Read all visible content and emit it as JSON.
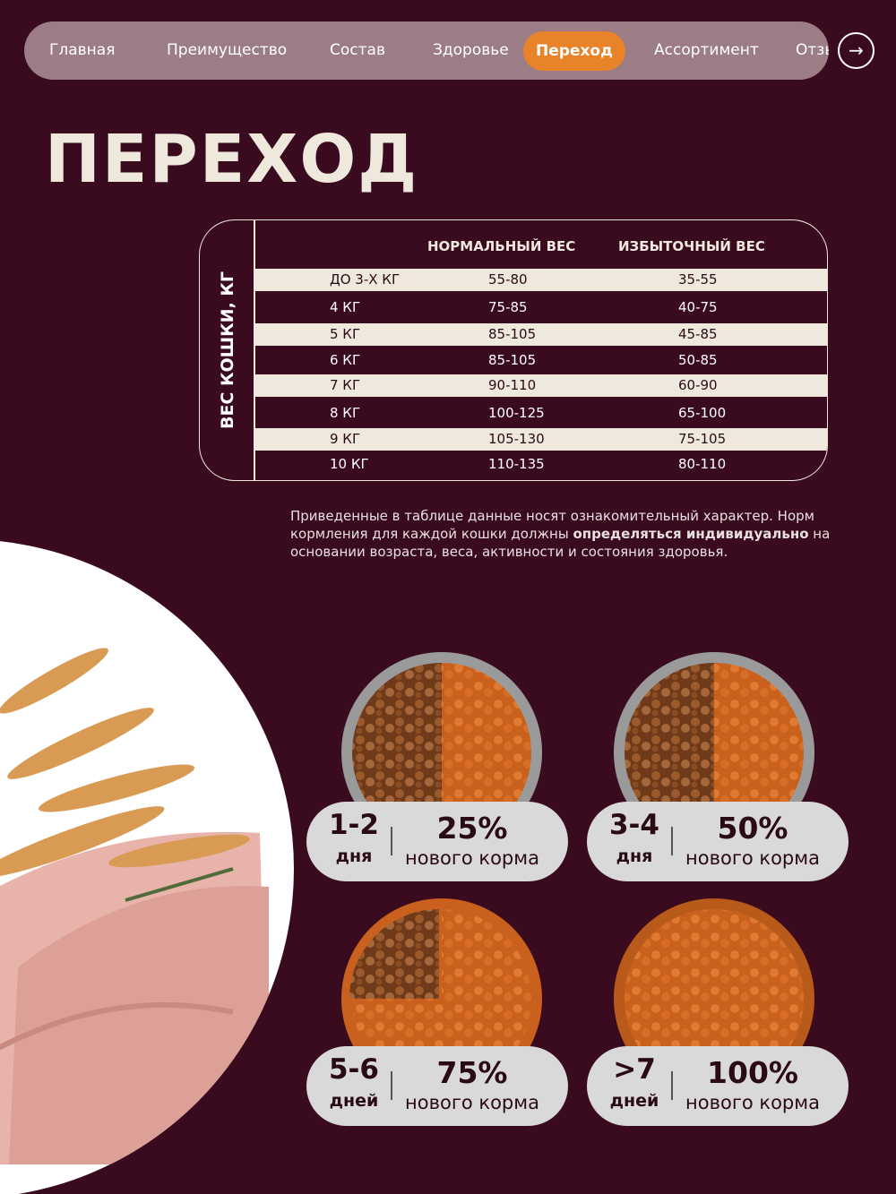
{
  "nav": {
    "items": [
      "Главная",
      "Преимущество",
      "Состав",
      "Здоровье",
      "Переход",
      "Ассортимент",
      "Отзы"
    ],
    "active": 4
  },
  "title": "ПЕРЕХОД",
  "table": {
    "side_label": "ВЕС КОШКИ, КГ",
    "headers": [
      "НОРМАЛЬНЫЙ ВЕС",
      "ИЗБЫТОЧНЫЙ ВЕС"
    ],
    "rows": [
      [
        "ДО 3-Х КГ",
        "55-80",
        "35-55"
      ],
      [
        "4 КГ",
        "75-85",
        "40-75"
      ],
      [
        "5 КГ",
        "85-105",
        "45-85"
      ],
      [
        "6 КГ",
        "85-105",
        "50-85"
      ],
      [
        "7 КГ",
        "90-110",
        "60-90"
      ],
      [
        "8 КГ",
        "100-125",
        "65-100"
      ],
      [
        "9 КГ",
        "105-130",
        "75-105"
      ],
      [
        "10 КГ",
        "110-135",
        "80-110"
      ]
    ]
  },
  "note": {
    "before": "Приведенные в таблице данные носят ознакомительный характер. Норм кормления для каждой кошки должны ",
    "bold": "определяться индивидуально",
    "after": " на основании возраста, веса, активности и состояния здоровья."
  },
  "cards": [
    {
      "days": "1-2",
      "unit": "дня",
      "percent": "25%",
      "caption": "нового корма"
    },
    {
      "days": "3-4",
      "unit": "дня",
      "percent": "50%",
      "caption": "нового корма"
    },
    {
      "days": "5-6",
      "unit": "дней",
      "percent": "75%",
      "caption": "нового корма"
    },
    {
      "days": ">7",
      "unit": "дней",
      "percent": "100%",
      "caption": "нового корма"
    }
  ]
}
